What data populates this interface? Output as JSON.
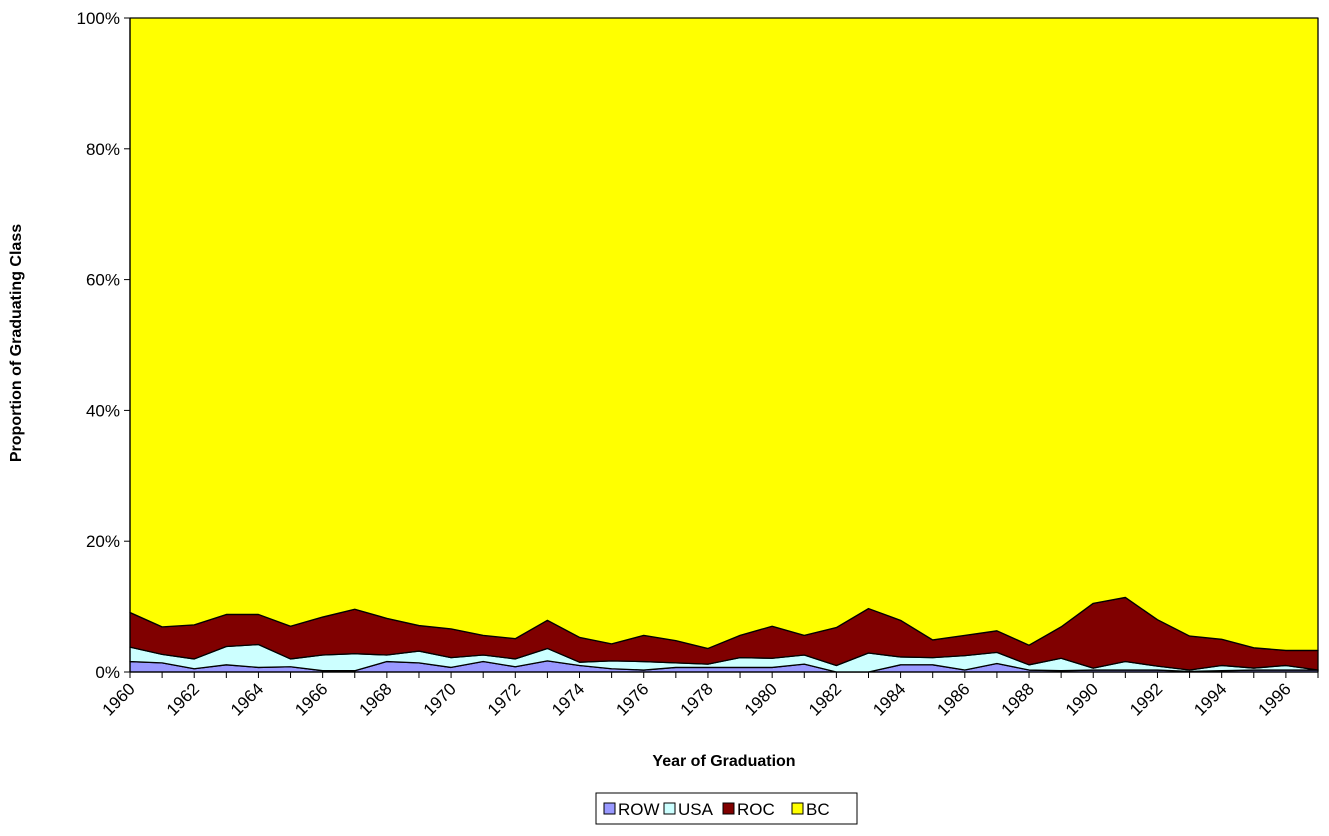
{
  "chart_data": {
    "type": "area",
    "stacked": true,
    "normalized_percent": true,
    "xlabel": "Year of Graduation",
    "ylabel": "Proportion of Graduating Class",
    "ylim": [
      0,
      100
    ],
    "y_ticks": [
      "0%",
      "20%",
      "40%",
      "60%",
      "80%",
      "100%"
    ],
    "x_tick_labels": [
      "1960",
      "1962",
      "1964",
      "1966",
      "1968",
      "1970",
      "1972",
      "1974",
      "1976",
      "1978",
      "1980",
      "1982",
      "1984",
      "1986",
      "1988",
      "1990",
      "1992",
      "1994",
      "1996"
    ],
    "x": [
      1960,
      1961,
      1962,
      1963,
      1964,
      1965,
      1966,
      1967,
      1968,
      1969,
      1970,
      1971,
      1972,
      1973,
      1974,
      1975,
      1976,
      1977,
      1978,
      1979,
      1980,
      1981,
      1982,
      1983,
      1984,
      1985,
      1986,
      1987,
      1988,
      1989,
      1990,
      1991,
      1992,
      1993,
      1994,
      1995,
      1996,
      1997
    ],
    "legend_position": "bottom",
    "series": [
      {
        "name": "ROW",
        "color": "#9999ff",
        "values": [
          1.6,
          1.4,
          0.5,
          1.1,
          0.7,
          0.8,
          0.2,
          0.2,
          1.6,
          1.4,
          0.7,
          1.6,
          0.8,
          1.7,
          1.0,
          0.5,
          0.3,
          0.7,
          0.7,
          0.7,
          0.7,
          1.2,
          0.0,
          0.0,
          1.1,
          1.1,
          0.3,
          1.3,
          0.3,
          0.2,
          0.3,
          0.3,
          0.3,
          0.1,
          0.2,
          0.3,
          0.3,
          0.3
        ]
      },
      {
        "name": "USA",
        "color": "#ccffff",
        "values": [
          2.2,
          1.3,
          1.5,
          2.8,
          3.5,
          1.2,
          2.4,
          2.6,
          1.0,
          1.8,
          1.5,
          1.0,
          1.2,
          1.9,
          0.5,
          1.2,
          1.3,
          0.7,
          0.5,
          1.5,
          1.4,
          1.4,
          1.0,
          2.9,
          1.2,
          1.1,
          2.2,
          1.7,
          0.8,
          1.9,
          0.3,
          1.3,
          0.6,
          0.2,
          0.8,
          0.3,
          0.7,
          0.0
        ]
      },
      {
        "name": "ROC",
        "color": "#800000",
        "values": [
          5.3,
          4.2,
          5.2,
          4.9,
          4.6,
          5.0,
          5.8,
          6.8,
          5.6,
          3.9,
          4.4,
          3.0,
          3.1,
          4.3,
          3.8,
          2.6,
          4.0,
          3.4,
          2.4,
          3.4,
          4.9,
          3.0,
          5.8,
          6.8,
          5.6,
          2.7,
          3.1,
          3.3,
          3.0,
          4.8,
          9.9,
          9.8,
          7.1,
          5.2,
          4.0,
          3.1,
          2.3,
          3.0
        ]
      },
      {
        "name": "BC",
        "color": "#ffff00",
        "values": [
          90.9,
          93.1,
          92.8,
          91.2,
          91.2,
          93.0,
          91.6,
          90.4,
          91.8,
          92.9,
          93.4,
          94.4,
          94.9,
          92.1,
          94.7,
          95.7,
          94.4,
          95.2,
          96.4,
          94.4,
          93.0,
          94.4,
          93.2,
          90.3,
          92.1,
          95.1,
          94.4,
          93.7,
          95.9,
          93.1,
          89.5,
          88.6,
          92.0,
          94.5,
          95.0,
          96.3,
          96.7,
          96.7
        ]
      }
    ]
  }
}
